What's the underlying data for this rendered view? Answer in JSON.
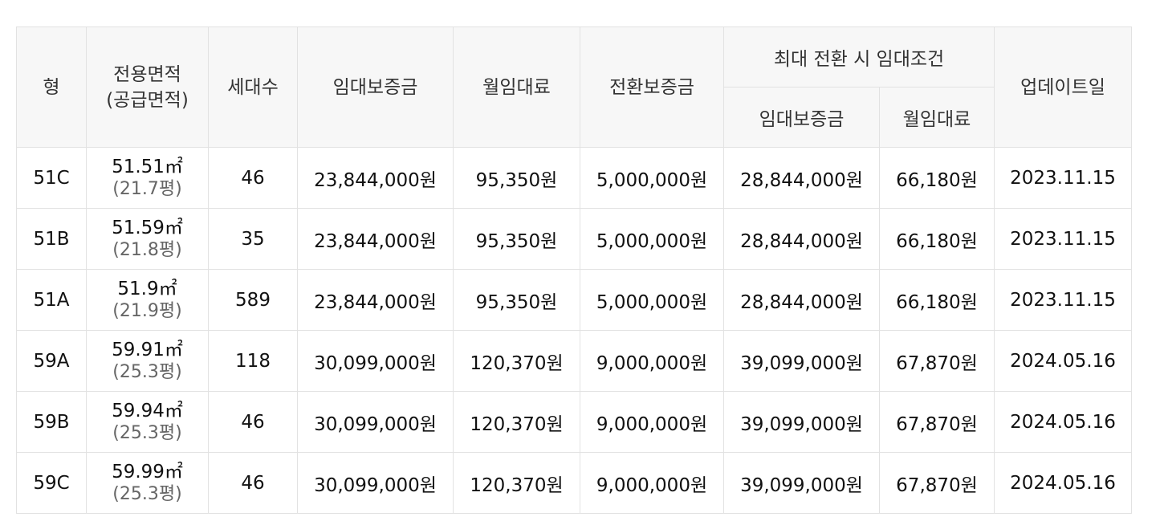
{
  "table": {
    "headers": {
      "type": "형",
      "area_line1": "전용면적",
      "area_line2": "(공급면적)",
      "households": "세대수",
      "deposit": "임대보증금",
      "monthly_rent": "월임대료",
      "conversion_deposit": "전환보증금",
      "max_conversion_group": "최대 전환 시 임대조건",
      "max_deposit": "임대보증금",
      "max_monthly_rent": "월임대료",
      "updated": "업데이트일"
    },
    "rows": [
      {
        "type": "51C",
        "area": "51.51㎡",
        "supply_area": "(21.7평)",
        "households": "46",
        "deposit": "23,844,000원",
        "monthly_rent": "95,350원",
        "conversion_deposit": "5,000,000원",
        "max_deposit": "28,844,000원",
        "max_monthly_rent": "66,180원",
        "updated": "2023.11.15"
      },
      {
        "type": "51B",
        "area": "51.59㎡",
        "supply_area": "(21.8평)",
        "households": "35",
        "deposit": "23,844,000원",
        "monthly_rent": "95,350원",
        "conversion_deposit": "5,000,000원",
        "max_deposit": "28,844,000원",
        "max_monthly_rent": "66,180원",
        "updated": "2023.11.15"
      },
      {
        "type": "51A",
        "area": "51.9㎡",
        "supply_area": "(21.9평)",
        "households": "589",
        "deposit": "23,844,000원",
        "monthly_rent": "95,350원",
        "conversion_deposit": "5,000,000원",
        "max_deposit": "28,844,000원",
        "max_monthly_rent": "66,180원",
        "updated": "2023.11.15"
      },
      {
        "type": "59A",
        "area": "59.91㎡",
        "supply_area": "(25.3평)",
        "households": "118",
        "deposit": "30,099,000원",
        "monthly_rent": "120,370원",
        "conversion_deposit": "9,000,000원",
        "max_deposit": "39,099,000원",
        "max_monthly_rent": "67,870원",
        "updated": "2024.05.16"
      },
      {
        "type": "59B",
        "area": "59.94㎡",
        "supply_area": "(25.3평)",
        "households": "46",
        "deposit": "30,099,000원",
        "monthly_rent": "120,370원",
        "conversion_deposit": "9,000,000원",
        "max_deposit": "39,099,000원",
        "max_monthly_rent": "67,870원",
        "updated": "2024.05.16"
      },
      {
        "type": "59C",
        "area": "59.99㎡",
        "supply_area": "(25.3평)",
        "households": "46",
        "deposit": "30,099,000원",
        "monthly_rent": "120,370원",
        "conversion_deposit": "9,000,000원",
        "max_deposit": "39,099,000원",
        "max_monthly_rent": "67,870원",
        "updated": "2024.05.16"
      }
    ]
  }
}
